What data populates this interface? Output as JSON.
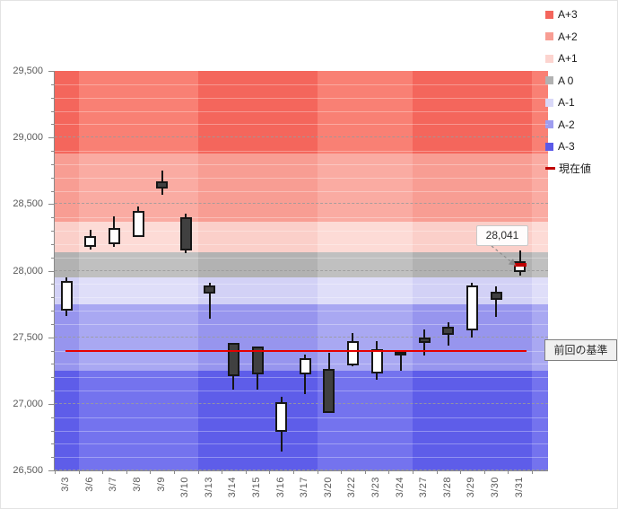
{
  "legend": {
    "items": [
      {
        "label": "A+3",
        "color": "#f4655c",
        "type": "square"
      },
      {
        "label": "A+2",
        "color": "#f89d93",
        "type": "square"
      },
      {
        "label": "A+1",
        "color": "#fcd4cf",
        "type": "square"
      },
      {
        "label": "A 0",
        "color": "#b2b2b2",
        "type": "square"
      },
      {
        "label": "A-1",
        "color": "#d9d8f8",
        "type": "square"
      },
      {
        "label": "A-2",
        "color": "#9e9df0",
        "type": "square"
      },
      {
        "label": "A-3",
        "color": "#5b5ae8",
        "type": "square"
      },
      {
        "label": "現在値",
        "color": "#c00000",
        "type": "dash"
      }
    ]
  },
  "annotations": {
    "current_value_label": "28,041",
    "baseline_label": "前回の基準"
  },
  "chart_data": {
    "type": "candlestick",
    "title": "",
    "ylim": [
      26500,
      29500
    ],
    "y_ticks": [
      29500,
      29000,
      28500,
      28000,
      27500,
      27000,
      26500
    ],
    "y_tick_labels": [
      "29,500",
      "29,000",
      "28,500",
      "28,000",
      "27,500",
      "27,000",
      "26,500"
    ],
    "y_minor_step": 100,
    "grid": "dashed-major",
    "legend_position": "top-right",
    "categories": [
      "3/3",
      "3/6",
      "3/7",
      "3/8",
      "3/9",
      "3/10",
      "3/13",
      "3/14",
      "3/15",
      "3/16",
      "3/17",
      "3/20",
      "3/22",
      "3/23",
      "3/24",
      "3/27",
      "3/28",
      "3/29",
      "3/30",
      "3/31"
    ],
    "bands": [
      {
        "label": "A+3",
        "from": 28880,
        "to": 29500,
        "color": "#f98074",
        "color_alt": "#f4665c"
      },
      {
        "label": "A+2",
        "from": 28370,
        "to": 28880,
        "color": "#faaba2",
        "color_alt": "#f89d93"
      },
      {
        "label": "A+1",
        "from": 28140,
        "to": 28370,
        "color": "#fddbd6",
        "color_alt": "#fbcfc9"
      },
      {
        "label": "A 0",
        "from": 27950,
        "to": 28140,
        "color": "#c0c0c0",
        "color_alt": "#b2b2b2"
      },
      {
        "label": "A-1",
        "from": 27750,
        "to": 27950,
        "color": "#dfdef9",
        "color_alt": "#d2d1f6"
      },
      {
        "label": "A-2",
        "from": 27250,
        "to": 27750,
        "color": "#a9a8f2",
        "color_alt": "#9795ee"
      },
      {
        "label": "A-3",
        "from": 26500,
        "to": 27250,
        "color": "#7473ee",
        "color_alt": "#5e5de9"
      }
    ],
    "dark_week_column_ranges": [
      [
        0,
        0
      ],
      [
        6,
        10
      ],
      [
        15,
        19
      ]
    ],
    "baseline": {
      "label": "前回の基準",
      "value": 27400,
      "color": "#e60000"
    },
    "current": {
      "label": "現在値",
      "value": 28041,
      "display": "28,041",
      "date": "3/31",
      "color": "#c00000"
    },
    "candles": [
      {
        "date": "3/3",
        "open": 27700,
        "high": 27950,
        "low": 27660,
        "close": 27920,
        "fill": "white"
      },
      {
        "date": "3/6",
        "open": 28180,
        "high": 28310,
        "low": 28160,
        "close": 28260,
        "fill": "white"
      },
      {
        "date": "3/7",
        "open": 28200,
        "high": 28410,
        "low": 28180,
        "close": 28320,
        "fill": "white"
      },
      {
        "date": "3/8",
        "open": 28250,
        "high": 28480,
        "low": 28250,
        "close": 28450,
        "fill": "white"
      },
      {
        "date": "3/9",
        "open": 28670,
        "high": 28750,
        "low": 28570,
        "close": 28620,
        "fill": "black"
      },
      {
        "date": "3/10",
        "open": 28400,
        "high": 28430,
        "low": 28130,
        "close": 28150,
        "fill": "black"
      },
      {
        "date": "3/13",
        "open": 27890,
        "high": 27910,
        "low": 27640,
        "close": 27830,
        "fill": "black"
      },
      {
        "date": "3/14",
        "open": 27460,
        "high": 27460,
        "low": 27110,
        "close": 27210,
        "fill": "black"
      },
      {
        "date": "3/15",
        "open": 27430,
        "high": 27430,
        "low": 27110,
        "close": 27220,
        "fill": "black"
      },
      {
        "date": "3/16",
        "open": 26790,
        "high": 27050,
        "low": 26640,
        "close": 27010,
        "fill": "white"
      },
      {
        "date": "3/17",
        "open": 27220,
        "high": 27370,
        "low": 27070,
        "close": 27340,
        "fill": "white"
      },
      {
        "date": "3/20",
        "open": 27260,
        "high": 27380,
        "low": 26930,
        "close": 26930,
        "fill": "black"
      },
      {
        "date": "3/22",
        "open": 27290,
        "high": 27530,
        "low": 27280,
        "close": 27470,
        "fill": "white"
      },
      {
        "date": "3/23",
        "open": 27230,
        "high": 27470,
        "low": 27180,
        "close": 27410,
        "fill": "white"
      },
      {
        "date": "3/24",
        "open": 27390,
        "high": 27400,
        "low": 27250,
        "close": 27360,
        "fill": "black"
      },
      {
        "date": "3/27",
        "open": 27500,
        "high": 27560,
        "low": 27360,
        "close": 27460,
        "fill": "black"
      },
      {
        "date": "3/28",
        "open": 27580,
        "high": 27610,
        "low": 27440,
        "close": 27520,
        "fill": "black"
      },
      {
        "date": "3/29",
        "open": 27550,
        "high": 27910,
        "low": 27500,
        "close": 27890,
        "fill": "white"
      },
      {
        "date": "3/30",
        "open": 27840,
        "high": 27880,
        "low": 27650,
        "close": 27780,
        "fill": "black"
      },
      {
        "date": "3/31",
        "open": 27990,
        "high": 28150,
        "low": 27960,
        "close": 28070,
        "fill": "white"
      }
    ]
  }
}
